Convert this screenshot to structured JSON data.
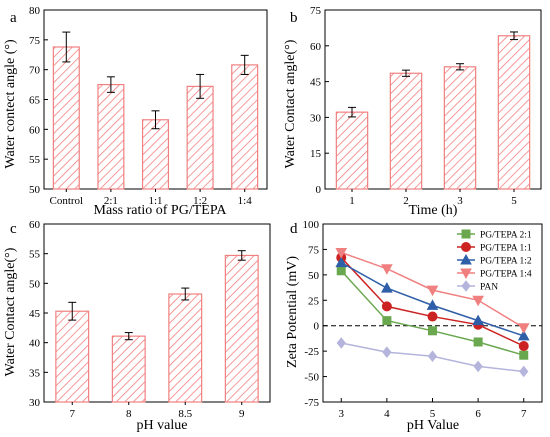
{
  "chart_data": [
    {
      "panel_letter": "a",
      "type": "bar",
      "categories": [
        "Control",
        "2:1",
        "1:1",
        "1:2",
        "1:4"
      ],
      "values": [
        73.8,
        67.5,
        61.6,
        67.2,
        70.8
      ],
      "errors": [
        2.5,
        1.3,
        1.5,
        2.0,
        1.6
      ],
      "xlabel": "Mass ratio of PG/TEPA",
      "ylabel": "Water contect angle (°)",
      "ylim": [
        50,
        80
      ],
      "yticks": [
        50,
        55,
        60,
        65,
        70,
        75,
        80
      ],
      "grid": false
    },
    {
      "panel_letter": "b",
      "type": "bar",
      "categories": [
        "1",
        "2",
        "3",
        "5"
      ],
      "values": [
        32.2,
        48.5,
        51.2,
        64.2
      ],
      "errors": [
        2.0,
        1.3,
        1.3,
        1.6
      ],
      "xlabel": "Time (h)",
      "ylabel": "Water Contact angle(°)",
      "ylim": [
        0,
        75
      ],
      "yticks": [
        0,
        15,
        30,
        45,
        60,
        75
      ],
      "grid": false
    },
    {
      "panel_letter": "c",
      "type": "bar",
      "categories": [
        "7",
        "8",
        "8.5",
        "9"
      ],
      "values": [
        45.3,
        41.1,
        48.2,
        54.7
      ],
      "errors": [
        1.5,
        0.6,
        1.0,
        0.8
      ],
      "xlabel": "pH value",
      "ylabel": "Water Contact angle(°)",
      "ylim": [
        30,
        60
      ],
      "yticks": [
        30,
        35,
        40,
        45,
        50,
        55,
        60
      ],
      "grid": false
    },
    {
      "panel_letter": "d",
      "type": "line",
      "x": [
        3,
        4,
        5,
        6,
        7
      ],
      "xlabel": "pH Value",
      "ylabel": "Zeta Potential (mV)",
      "ylim": [
        -75,
        100
      ],
      "yticks": [
        -75,
        -50,
        -25,
        0,
        25,
        50,
        75,
        100
      ],
      "xticks": [
        3,
        4,
        5,
        6,
        7
      ],
      "legend_position": "top-right",
      "reference_line": 0,
      "series": [
        {
          "name": "PG/TEPA 2:1",
          "marker": "square",
          "color": "#6aa84f",
          "values": [
            54,
            5,
            -5,
            -16,
            -29
          ],
          "errors": [
            2,
            2,
            2,
            2,
            2
          ]
        },
        {
          "name": "PG/TEPA 1:1",
          "marker": "circle",
          "color": "#cc2222",
          "values": [
            67,
            19,
            9,
            1,
            -20
          ],
          "errors": [
            2,
            2,
            2,
            2,
            2
          ]
        },
        {
          "name": "PG/TEPA 1:2",
          "marker": "triangle-up",
          "color": "#2e5fa8",
          "values": [
            62,
            37,
            20,
            5,
            -10
          ],
          "errors": [
            2,
            2,
            2,
            2,
            2
          ]
        },
        {
          "name": "PG/TEPA 1:4",
          "marker": "triangle-down",
          "color": "#f08080",
          "values": [
            72,
            56,
            35,
            25,
            -2
          ],
          "errors": [
            2,
            2,
            2,
            2,
            2
          ]
        },
        {
          "name": "PAN",
          "marker": "diamond",
          "color": "#b4b4dc",
          "values": [
            -17,
            -26,
            -30,
            -40,
            -45
          ],
          "errors": [
            3,
            3,
            3,
            3,
            3
          ]
        }
      ]
    }
  ]
}
